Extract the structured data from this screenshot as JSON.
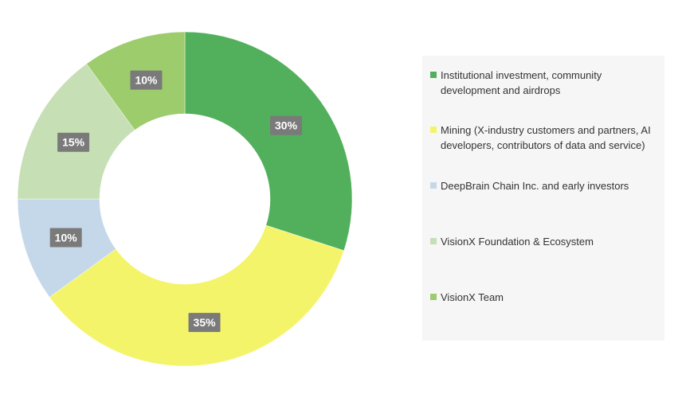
{
  "chart_data": {
    "type": "pie",
    "donut": true,
    "title": "",
    "legend_position": "right",
    "slices": [
      {
        "label": "Institutional investment, community development and airdrops",
        "value": 30,
        "value_label": "30%",
        "color": "#52b05c"
      },
      {
        "label": "Mining (X-industry customers and partners, AI developers, contributors of data and service)",
        "value": 35,
        "value_label": "35%",
        "color": "#f4f46a"
      },
      {
        "label": "DeepBrain Chain Inc. and early investors",
        "value": 10,
        "value_label": "10%",
        "color": "#c5d8ea"
      },
      {
        "label": "VisionX Foundation & Ecosystem",
        "value": 15,
        "value_label": "15%",
        "color": "#c7dfb4"
      },
      {
        "label": "VisionX Team",
        "value": 10,
        "value_label": "10%",
        "color": "#9dcc6c"
      }
    ]
  }
}
